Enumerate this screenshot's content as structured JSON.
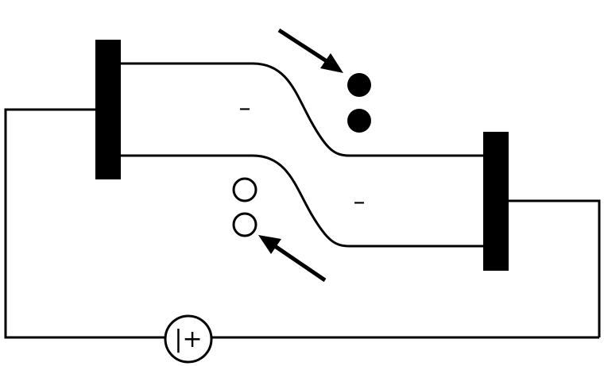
{
  "diagram": {
    "left_region_sign": "–",
    "right_region_sign": "–",
    "source_label": "|+"
  },
  "colors": {
    "ink": "#000000",
    "background": "#ffffff"
  },
  "icons": {
    "filled_carriers": "filled-dot-icon",
    "hollow_carriers": "hollow-dot-icon",
    "arrows": "arrow-icon",
    "source": "battery-source-icon"
  }
}
